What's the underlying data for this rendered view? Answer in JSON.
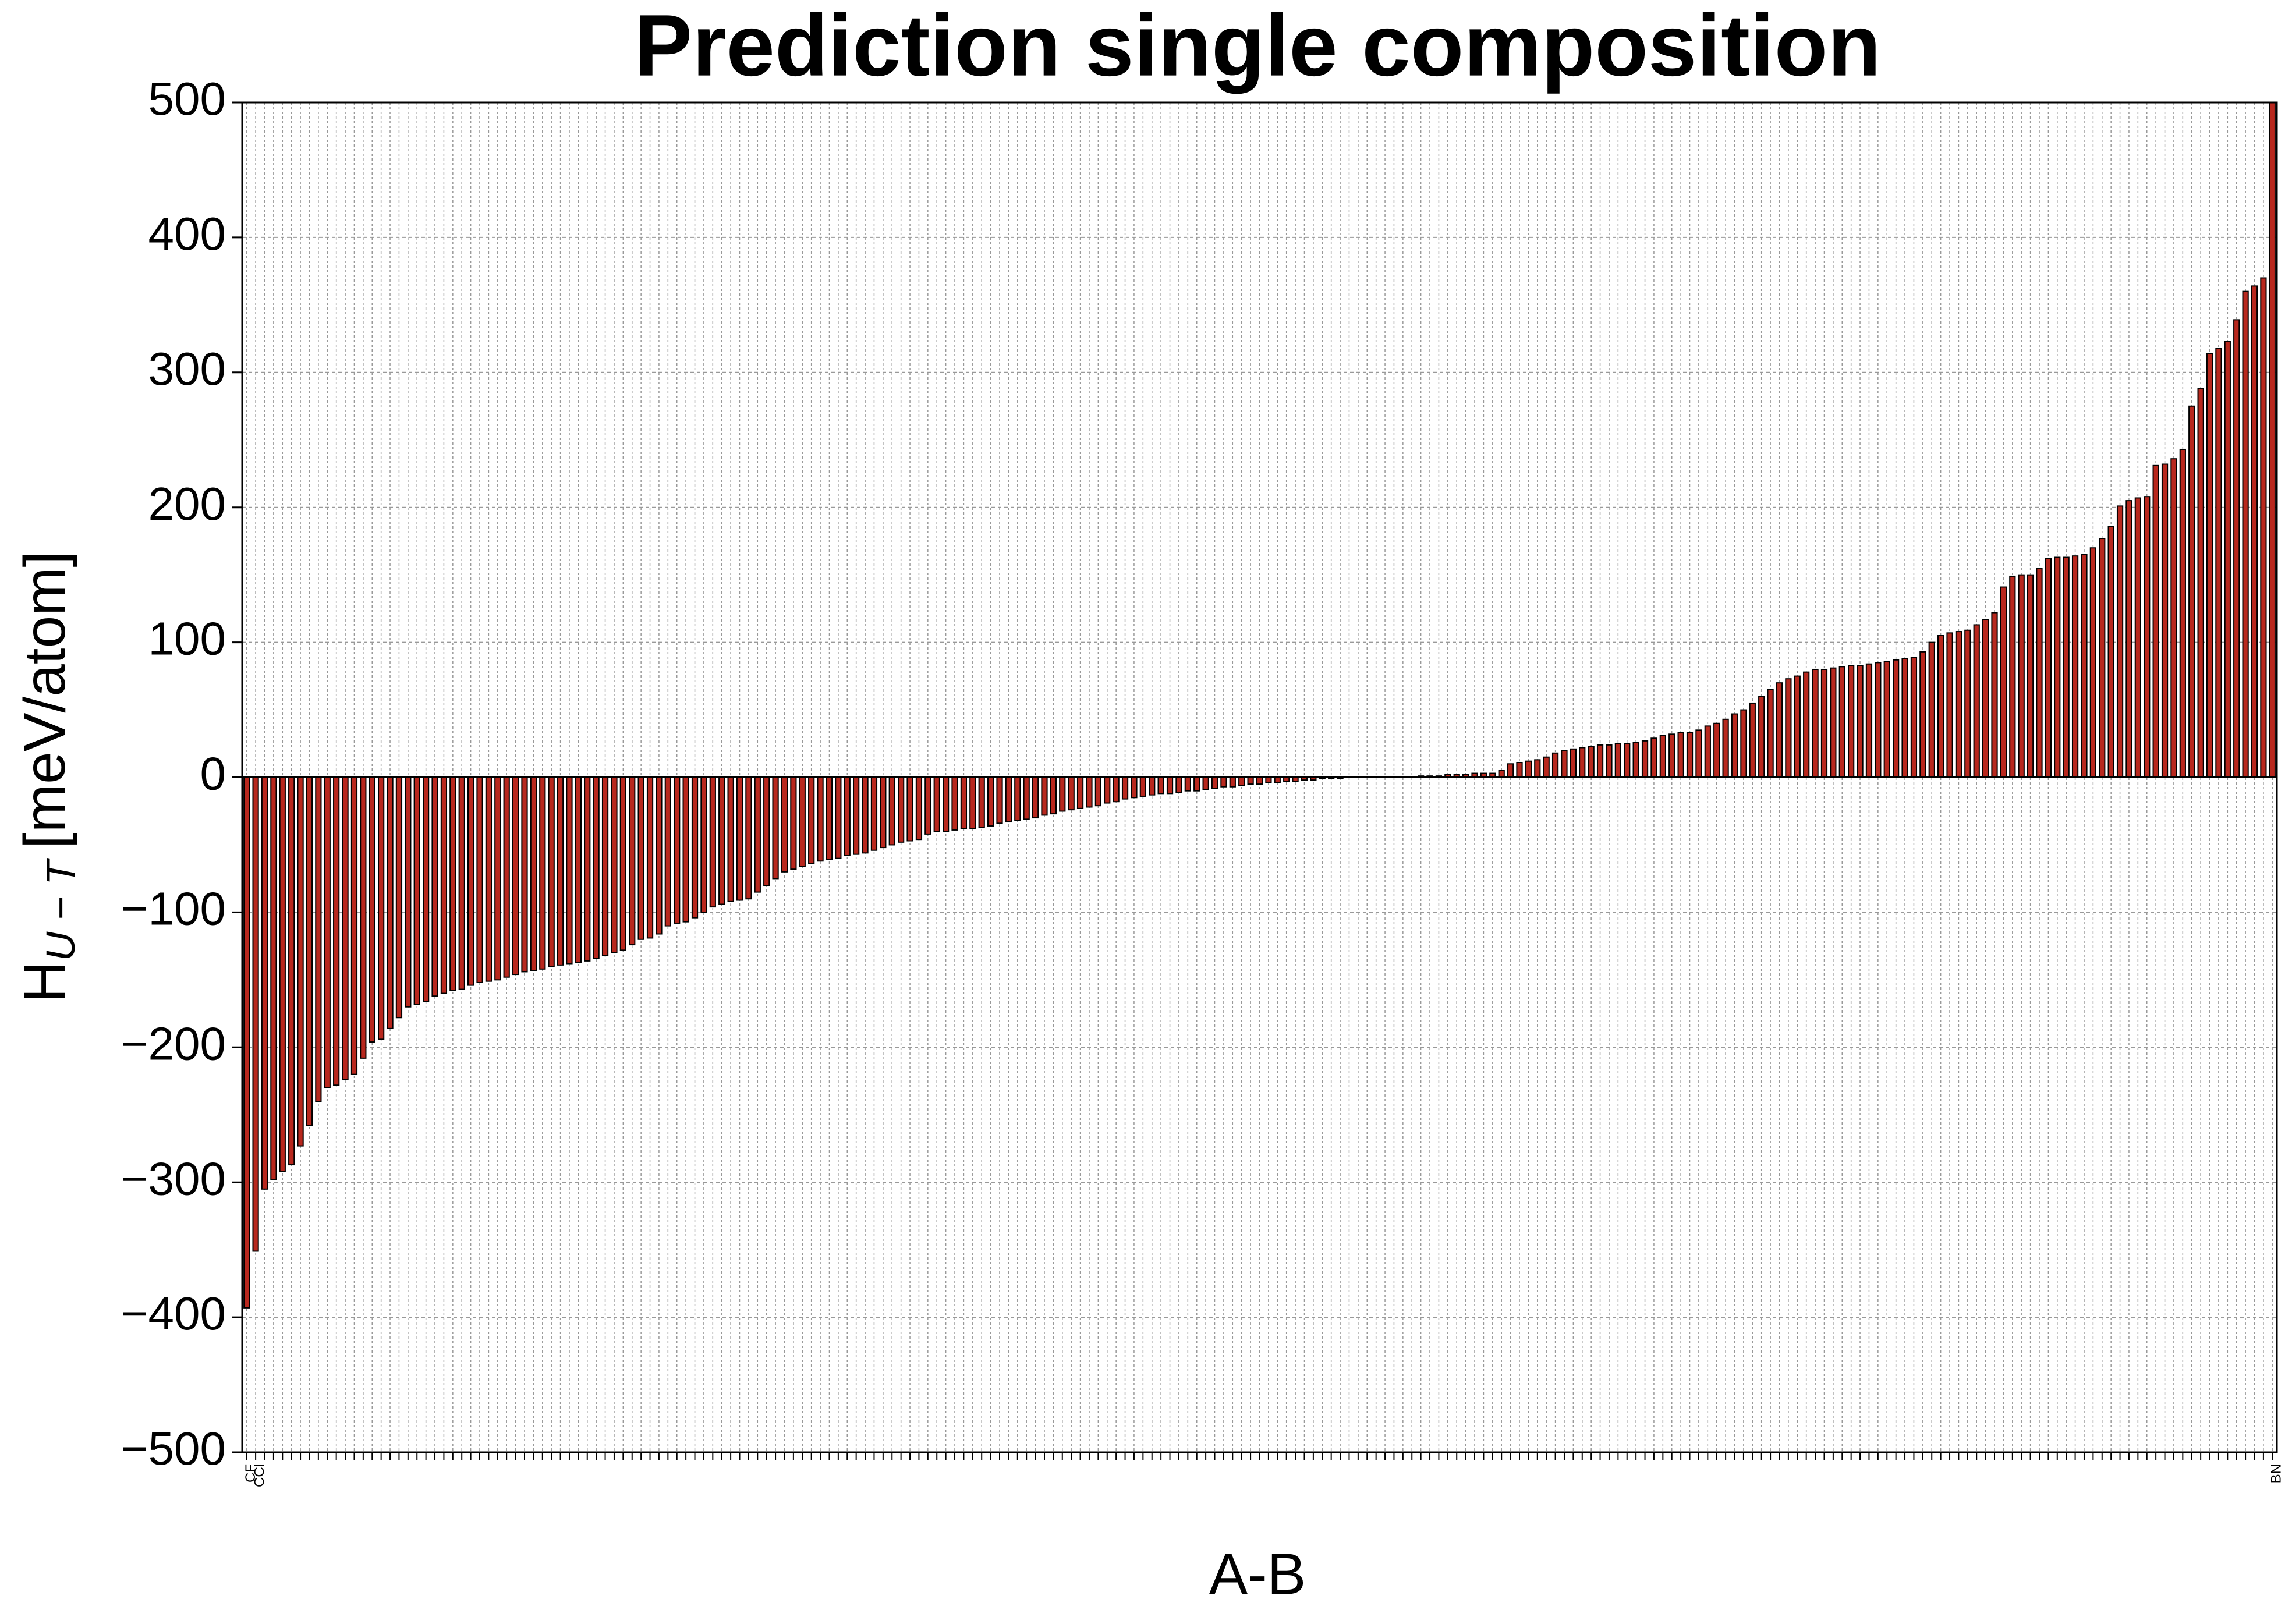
{
  "chart_data": {
    "type": "bar",
    "title": "Prediction single composition",
    "xlabel": "A-B",
    "ylabel": {
      "main": "H",
      "sub": "U − T",
      "unit": "[meV/atom]"
    },
    "color": "#b8281e",
    "grid": true,
    "ylim": [
      -500,
      500
    ],
    "yticks": [
      {
        "value": -500,
        "label": "−500"
      },
      {
        "value": -400,
        "label": "−400"
      },
      {
        "value": -300,
        "label": "−300"
      },
      {
        "value": -200,
        "label": "−200"
      },
      {
        "value": -100,
        "label": "−100"
      },
      0,
      100,
      200,
      300,
      400,
      500
    ],
    "categories": [
      "CF",
      "CCl",
      null,
      null,
      null,
      null,
      null,
      null,
      null,
      null,
      null,
      null,
      null,
      null,
      null,
      null,
      null,
      null,
      null,
      null,
      null,
      null,
      null,
      null,
      null,
      null,
      null,
      null,
      null,
      null,
      null,
      null,
      null,
      null,
      null,
      null,
      null,
      null,
      null,
      null,
      null,
      null,
      null,
      null,
      null,
      null,
      null,
      null,
      null,
      null,
      null,
      null,
      null,
      null,
      null,
      null,
      null,
      null,
      null,
      null,
      null,
      null,
      null,
      null,
      null,
      null,
      null,
      null,
      null,
      null,
      null,
      null,
      null,
      null,
      null,
      null,
      null,
      null,
      null,
      null,
      null,
      null,
      null,
      null,
      null,
      null,
      null,
      null,
      null,
      null,
      null,
      null,
      null,
      null,
      null,
      null,
      null,
      null,
      null,
      null,
      null,
      null,
      null,
      null,
      null,
      null,
      null,
      null,
      null,
      null,
      null,
      null,
      null,
      null,
      null,
      null,
      null,
      null,
      null,
      null,
      null,
      null,
      null,
      null,
      null,
      null,
      null,
      null,
      null,
      null,
      null,
      null,
      null,
      null,
      null,
      null,
      null,
      null,
      null,
      null,
      null,
      null,
      null,
      null,
      null,
      null,
      null,
      null,
      null,
      null,
      null,
      null,
      null,
      null,
      null,
      null,
      null,
      null,
      null,
      null,
      null,
      null,
      null,
      null,
      null,
      null,
      null,
      null,
      null,
      null,
      null,
      null,
      null,
      null,
      null,
      null,
      null,
      null,
      null,
      null,
      null,
      null,
      null,
      null,
      null,
      null,
      null,
      null,
      null,
      null,
      null,
      null,
      null,
      null,
      null,
      null,
      null,
      null,
      null,
      null,
      null,
      null,
      null,
      null,
      null,
      null,
      null,
      null,
      null,
      null,
      null,
      null,
      null,
      null,
      null,
      null,
      null,
      null,
      null,
      null,
      null,
      null,
      null,
      null,
      null,
      null,
      "BN"
    ],
    "values": [
      -393,
      -351,
      -305,
      -298,
      -292,
      -287,
      -273,
      -258,
      -240,
      -230,
      -228,
      -224,
      -220,
      -208,
      -196,
      -194,
      -186,
      -178,
      -170,
      -168,
      -166,
      -162,
      -160,
      -158,
      -157,
      -154,
      -152,
      -151,
      -150,
      -148,
      -146,
      -144,
      -143,
      -142,
      -140,
      -139,
      -138,
      -137,
      -136,
      -134,
      -132,
      -130,
      -128,
      -124,
      -120,
      -119,
      -116,
      -110,
      -108,
      -107,
      -104,
      -100,
      -96,
      -94,
      -92,
      -91,
      -90,
      -85,
      -80,
      -75,
      -70,
      -68,
      -66,
      -64,
      -62,
      -61,
      -60,
      -58,
      -57,
      -56,
      -54,
      -52,
      -50,
      -48,
      -47,
      -46,
      -42,
      -40,
      -40,
      -39,
      -38,
      -38,
      -37,
      -36,
      -34,
      -33,
      -32,
      -31,
      -30,
      -28,
      -27,
      -25,
      -24,
      -23,
      -22,
      -21,
      -19,
      -18,
      -16,
      -15,
      -14,
      -13,
      -12,
      -12,
      -11,
      -10,
      -10,
      -9,
      -8,
      -7,
      -7,
      -6,
      -5,
      -5,
      -4,
      -4,
      -3,
      -3,
      -2,
      -2,
      -1,
      -1,
      -1,
      0,
      0,
      0,
      0,
      0,
      0,
      0,
      0,
      1,
      1,
      1,
      2,
      2,
      2,
      3,
      3,
      3,
      5,
      10,
      11,
      12,
      13,
      15,
      18,
      20,
      21,
      22,
      23,
      24,
      24,
      25,
      25,
      26,
      27,
      29,
      31,
      32,
      33,
      33,
      35,
      38,
      40,
      43,
      47,
      50,
      55,
      60,
      65,
      70,
      73,
      75,
      78,
      80,
      80,
      81,
      82,
      83,
      83,
      84,
      85,
      86,
      87,
      88,
      89,
      93,
      100,
      105,
      107,
      108,
      109,
      113,
      117,
      122,
      141,
      149,
      150,
      150,
      155,
      162,
      163,
      163,
      164,
      165,
      170,
      177,
      186,
      201,
      205,
      207,
      208,
      231,
      232,
      236,
      243,
      275,
      288,
      314,
      318,
      323,
      339,
      360,
      364,
      370,
      500
    ]
  }
}
